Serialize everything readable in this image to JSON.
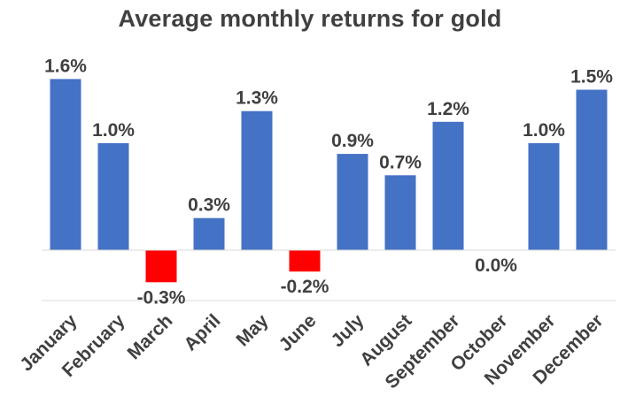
{
  "chart_data": {
    "type": "bar",
    "title": "Average monthly returns for gold",
    "categories": [
      "January",
      "February",
      "March",
      "April",
      "May",
      "June",
      "July",
      "August",
      "September",
      "October",
      "November",
      "December"
    ],
    "values": [
      1.6,
      1.0,
      -0.3,
      0.3,
      1.3,
      -0.2,
      0.9,
      0.7,
      1.2,
      0.0,
      1.0,
      1.5
    ],
    "value_labels": [
      "1.6%",
      "1.0%",
      "-0.3%",
      "0.3%",
      "1.3%",
      "-0.2%",
      "0.9%",
      "0.7%",
      "1.2%",
      "0.0%",
      "1.0%",
      "1.5%"
    ],
    "xlabel": "",
    "ylabel": "",
    "ylim": [
      -0.5,
      1.7
    ],
    "grid": false,
    "legend": "none",
    "colors": {
      "positive": "#4472C4",
      "negative": "#FF0000",
      "text": "#404040",
      "axis": "#D9D9D9"
    }
  }
}
